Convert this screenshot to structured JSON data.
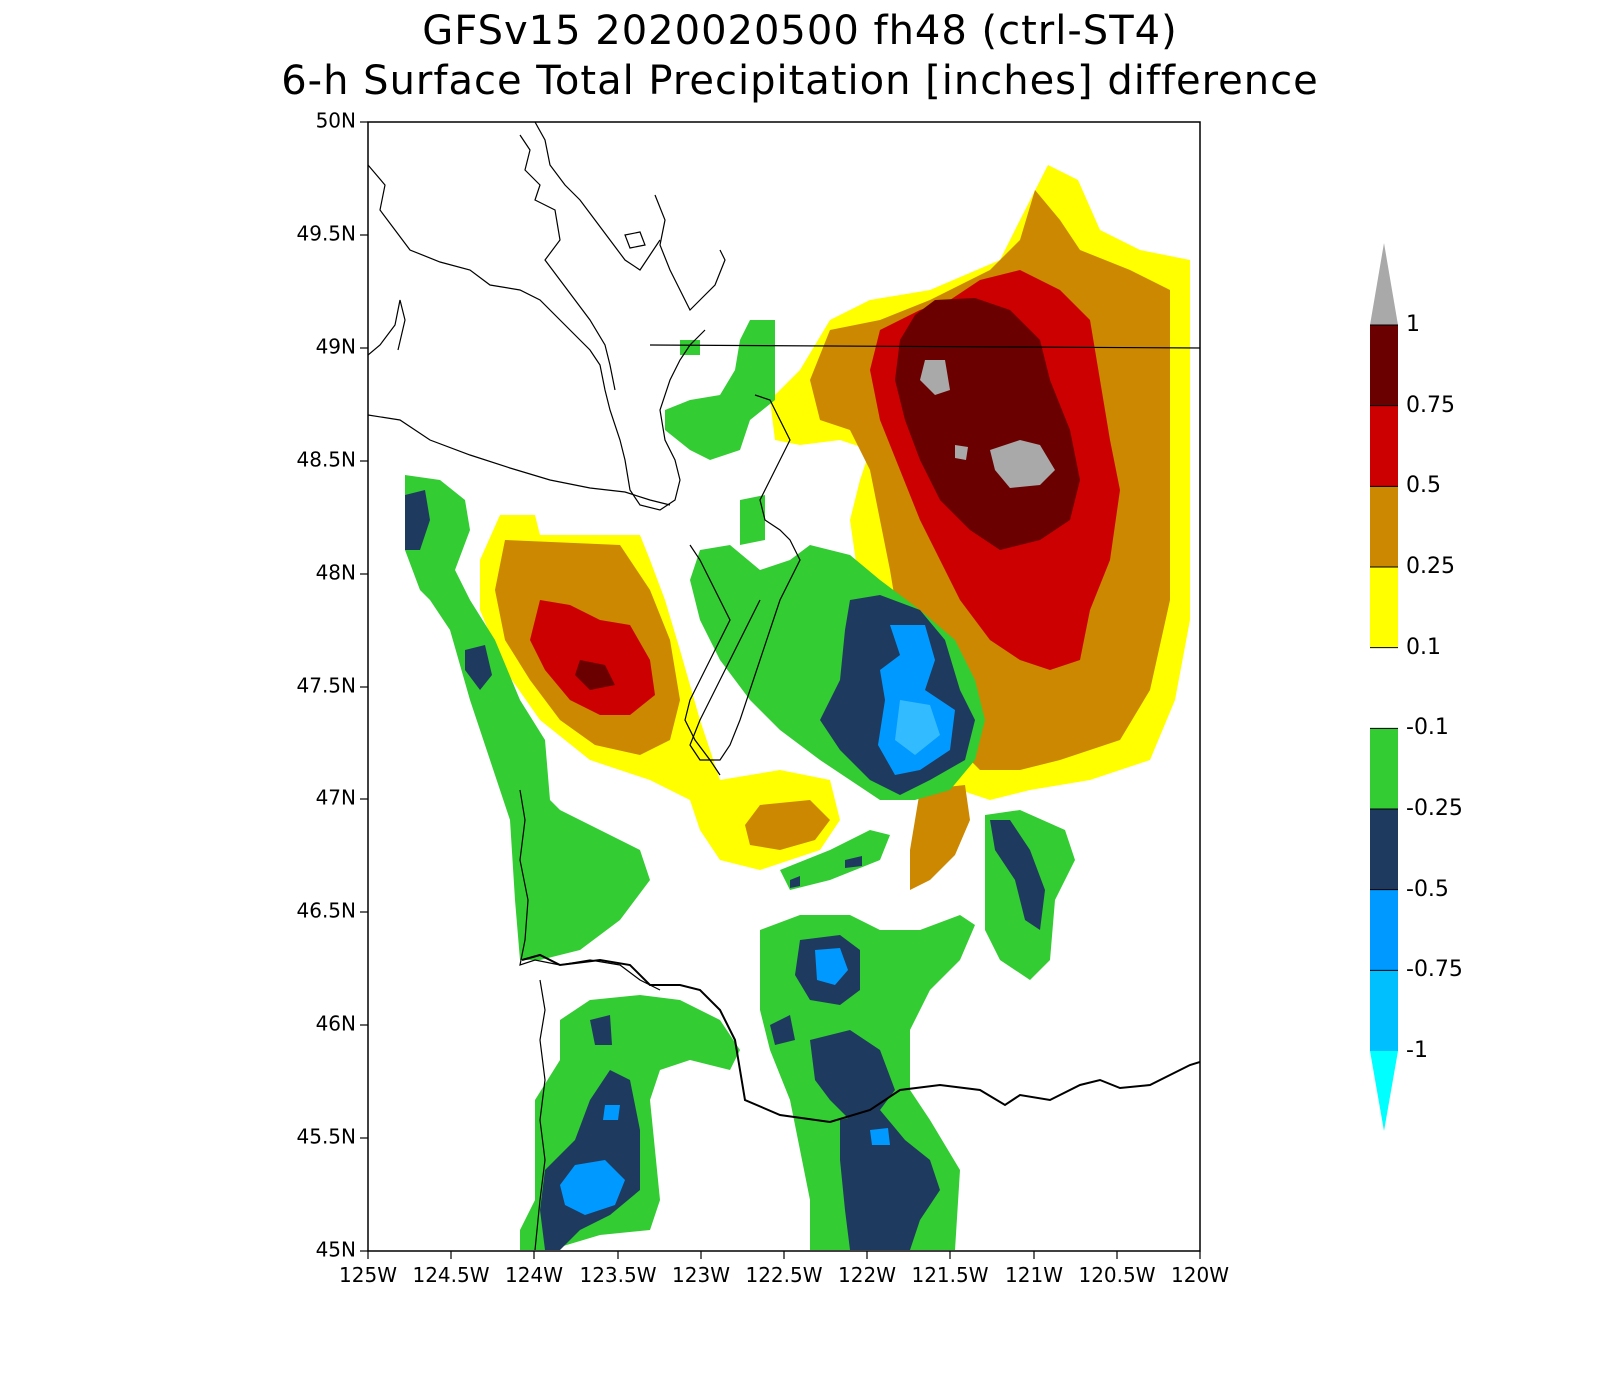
{
  "title": {
    "line1": "GFSv15 2020020500 fh48 (ctrl-ST4)",
    "line2": "6-h Surface Total Precipitation [inches] difference"
  },
  "map": {
    "lon_range": [
      -125,
      -120
    ],
    "lat_range": [
      45,
      50
    ],
    "lat_ticks": [
      "50N",
      "49.5N",
      "49N",
      "48.5N",
      "48N",
      "47.5N",
      "47N",
      "46.5N",
      "46N",
      "45.5N",
      "45N"
    ],
    "lon_ticks": [
      "125W",
      "124.5W",
      "124W",
      "123.5W",
      "123W",
      "122.5W",
      "122W",
      "121.5W",
      "121W",
      "120.5W",
      "120W"
    ]
  },
  "colorbar": {
    "levels": [
      {
        "label": "1",
        "color": "#a9a9a9"
      },
      {
        "label": "0.75",
        "color": "#6b0000"
      },
      {
        "label": "0.5",
        "color": "#cc0000"
      },
      {
        "label": "0.25",
        "color": "#cc8800"
      },
      {
        "label": "0.1",
        "color": "#ffff00"
      },
      {
        "label": "-0.1",
        "color": "#ffffff"
      },
      {
        "label": "-0.25",
        "color": "#33cc33"
      },
      {
        "label": "-0.5",
        "color": "#1f3a5f"
      },
      {
        "label": "-0.75",
        "color": "#0099ff"
      },
      {
        "label": "-1",
        "color": "#00ccff"
      }
    ],
    "top_color": "#a9a9a9",
    "bottom_color": "#00ffff",
    "segment_colors": [
      "#6b0000",
      "#cc0000",
      "#cc8800",
      "#ffff00",
      "#ffffff",
      "#33cc33",
      "#1f3a5f",
      "#0099ff",
      "#00bfff"
    ]
  },
  "palette": {
    "gray": "#a9a9a9",
    "darkred": "#6b0000",
    "red": "#cc0000",
    "orange": "#cc8800",
    "yellow": "#ffff00",
    "green": "#33cc33",
    "navy": "#1f3a5f",
    "blue": "#0099ff",
    "lightblue": "#33bbff"
  }
}
